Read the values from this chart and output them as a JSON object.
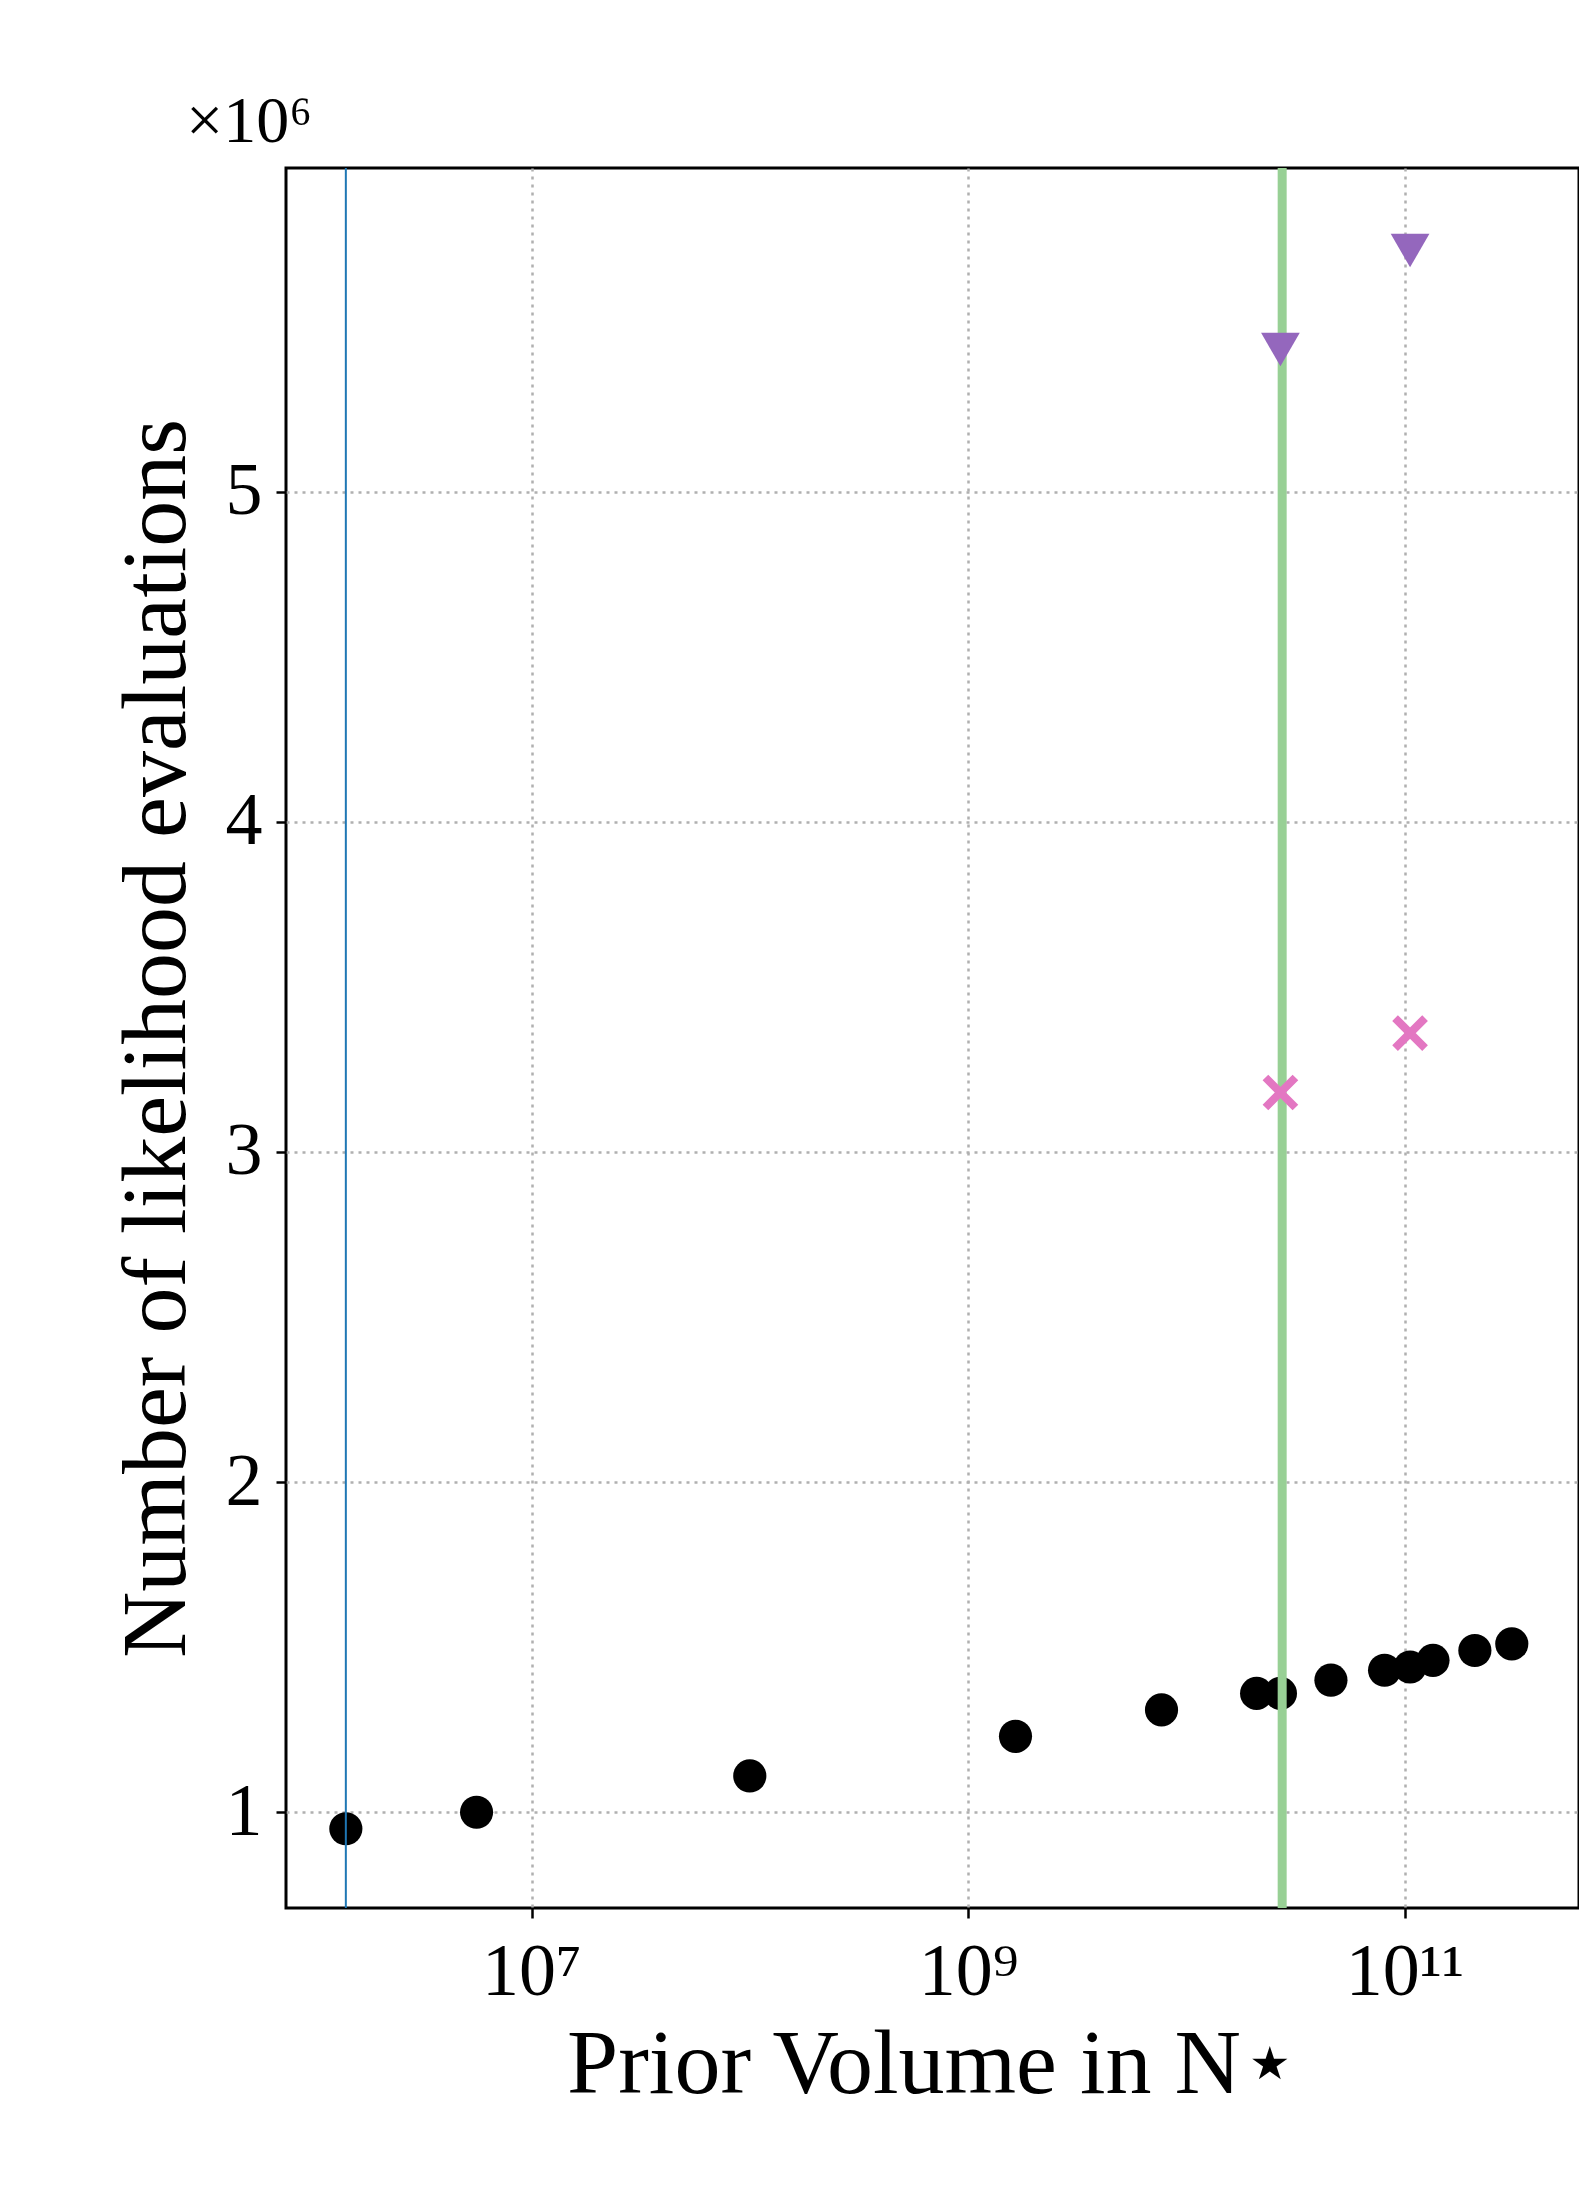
{
  "chart_data": {
    "type": "scatter",
    "xlabel": "Prior Volume in N⋆",
    "ylabel": "Number of likelihood evaluations",
    "annotations": [
      "×10⁶"
    ],
    "log": "x",
    "grid": true,
    "xlim": [
      750000,
      630000000000
    ],
    "ylim": [
      0.71,
      5.98
    ],
    "xticks": [
      {
        "value": 10000000,
        "label": "10⁷"
      },
      {
        "value": 1000000000,
        "label": "10⁹"
      },
      {
        "value": 100000000000,
        "label": "10¹¹"
      }
    ],
    "yticks": [
      1,
      2,
      3,
      4,
      5
    ],
    "series": [
      {
        "color": "#000000",
        "marker": "circle",
        "x": [
          1410000,
          5600000,
          100000000,
          1650000000,
          7700000000,
          21000000000,
          27000000000,
          46000000000,
          81000000000,
          106000000000,
          135000000000,
          210000000000,
          310000000000
        ],
        "values": [
          0.95,
          1.0,
          1.11,
          1.23,
          1.31,
          1.36,
          1.36,
          1.4,
          1.43,
          1.44,
          1.46,
          1.49,
          1.51
        ]
      },
      {
        "color": "#9467bd",
        "marker": "triangle",
        "x": [
          27000000000,
          106000000000
        ],
        "values": [
          5.43,
          5.73
        ]
      },
      {
        "color": "#e377c2",
        "marker": "cross",
        "x": [
          27000000000,
          106000000000
        ],
        "values": [
          3.18,
          3.36
        ]
      }
    ],
    "ref_lines": [
      {
        "axis": "x",
        "value": 1410000,
        "color": "#1f77b4"
      },
      {
        "axis": "x",
        "value": 27500000000,
        "color": "#98d095"
      }
    ]
  }
}
